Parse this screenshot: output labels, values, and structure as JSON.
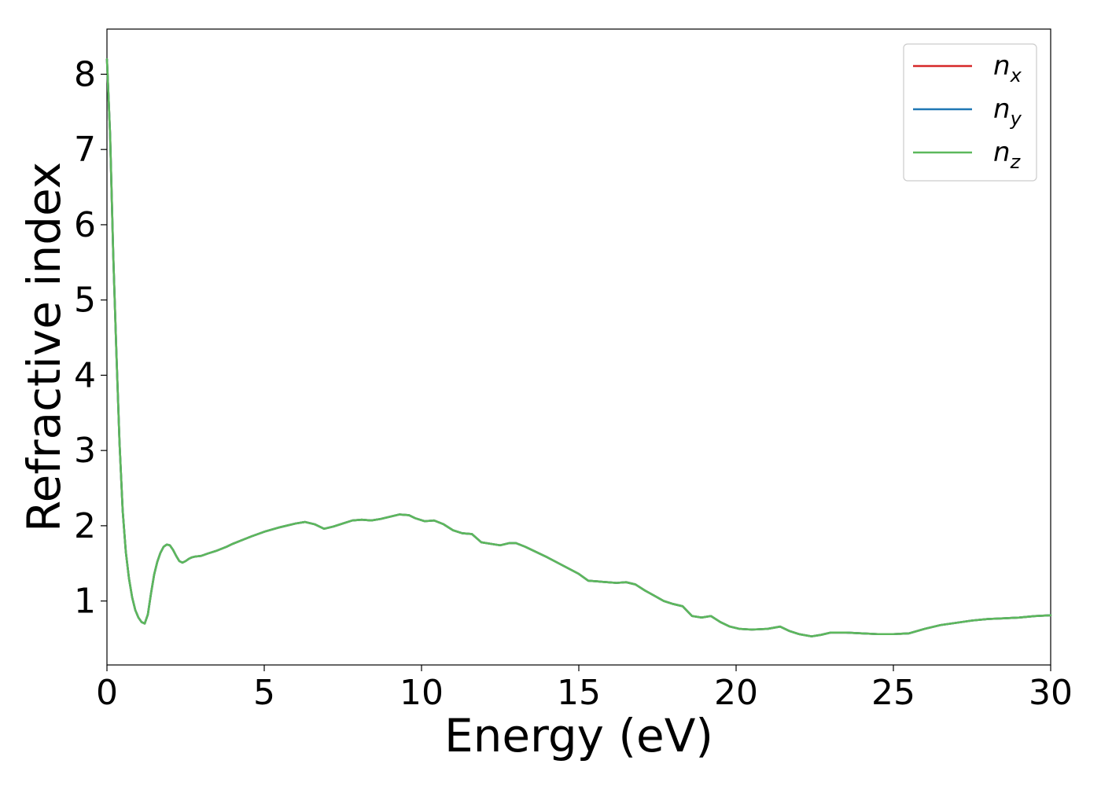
{
  "chart_data": {
    "type": "line",
    "xlabel": "Energy (eV)",
    "ylabel": "Refractive index",
    "xlim": [
      0,
      30
    ],
    "ylim": [
      0.15,
      8.6
    ],
    "xticks": [
      0,
      5,
      10,
      15,
      20,
      25,
      30
    ],
    "yticks": [
      1,
      2,
      3,
      4,
      5,
      6,
      7,
      8
    ],
    "grid": false,
    "legend_position": "top-right",
    "x": [
      0.0,
      0.1,
      0.2,
      0.3,
      0.4,
      0.5,
      0.6,
      0.7,
      0.8,
      0.9,
      1.0,
      1.1,
      1.2,
      1.3,
      1.4,
      1.5,
      1.6,
      1.7,
      1.8,
      1.9,
      2.0,
      2.1,
      2.2,
      2.3,
      2.4,
      2.5,
      2.6,
      2.7,
      2.8,
      3.0,
      3.2,
      3.5,
      3.8,
      4.0,
      4.3,
      4.6,
      5.0,
      5.5,
      6.0,
      6.3,
      6.6,
      6.9,
      7.2,
      7.5,
      7.8,
      8.1,
      8.4,
      8.7,
      9.0,
      9.3,
      9.6,
      9.8,
      10.1,
      10.4,
      10.7,
      11.0,
      11.3,
      11.6,
      11.9,
      12.2,
      12.5,
      12.8,
      13.0,
      13.3,
      13.6,
      14.0,
      14.5,
      15.0,
      15.3,
      15.6,
      15.9,
      16.2,
      16.5,
      16.8,
      17.1,
      17.4,
      17.7,
      18.0,
      18.3,
      18.6,
      18.9,
      19.2,
      19.5,
      19.8,
      20.1,
      20.5,
      21.0,
      21.4,
      21.7,
      22.0,
      22.4,
      22.7,
      23.0,
      23.5,
      24.0,
      24.5,
      25.0,
      25.5,
      26.0,
      26.5,
      27.0,
      27.5,
      28.0,
      28.5,
      29.0,
      29.5,
      30.0
    ],
    "series": [
      {
        "name": "n_x",
        "color": "#d62728",
        "y": [
          8.2,
          7.2,
          5.6,
          4.3,
          3.1,
          2.2,
          1.65,
          1.3,
          1.05,
          0.88,
          0.78,
          0.72,
          0.7,
          0.82,
          1.1,
          1.35,
          1.52,
          1.64,
          1.72,
          1.75,
          1.74,
          1.68,
          1.6,
          1.53,
          1.51,
          1.53,
          1.56,
          1.58,
          1.59,
          1.6,
          1.63,
          1.67,
          1.72,
          1.76,
          1.81,
          1.86,
          1.92,
          1.98,
          2.03,
          2.05,
          2.02,
          1.96,
          1.99,
          2.03,
          2.07,
          2.08,
          2.07,
          2.09,
          2.12,
          2.15,
          2.14,
          2.1,
          2.06,
          2.07,
          2.02,
          1.94,
          1.9,
          1.89,
          1.78,
          1.76,
          1.74,
          1.77,
          1.77,
          1.72,
          1.66,
          1.58,
          1.47,
          1.36,
          1.27,
          1.26,
          1.25,
          1.24,
          1.25,
          1.22,
          1.14,
          1.07,
          1.0,
          0.96,
          0.93,
          0.8,
          0.78,
          0.8,
          0.72,
          0.66,
          0.63,
          0.62,
          0.63,
          0.66,
          0.6,
          0.56,
          0.53,
          0.55,
          0.58,
          0.58,
          0.57,
          0.56,
          0.56,
          0.57,
          0.63,
          0.68,
          0.71,
          0.74,
          0.76,
          0.77,
          0.78,
          0.8,
          0.81
        ]
      },
      {
        "name": "n_y",
        "color": "#1f77b4",
        "y": [
          8.2,
          7.2,
          5.6,
          4.3,
          3.1,
          2.2,
          1.65,
          1.3,
          1.05,
          0.88,
          0.78,
          0.72,
          0.7,
          0.82,
          1.1,
          1.35,
          1.52,
          1.64,
          1.72,
          1.75,
          1.74,
          1.68,
          1.6,
          1.53,
          1.51,
          1.53,
          1.56,
          1.58,
          1.59,
          1.6,
          1.63,
          1.67,
          1.72,
          1.76,
          1.81,
          1.86,
          1.92,
          1.98,
          2.03,
          2.05,
          2.02,
          1.96,
          1.99,
          2.03,
          2.07,
          2.08,
          2.07,
          2.09,
          2.12,
          2.15,
          2.14,
          2.1,
          2.06,
          2.07,
          2.02,
          1.94,
          1.9,
          1.89,
          1.78,
          1.76,
          1.74,
          1.77,
          1.77,
          1.72,
          1.66,
          1.58,
          1.47,
          1.36,
          1.27,
          1.26,
          1.25,
          1.24,
          1.25,
          1.22,
          1.14,
          1.07,
          1.0,
          0.96,
          0.93,
          0.8,
          0.78,
          0.8,
          0.72,
          0.66,
          0.63,
          0.62,
          0.63,
          0.66,
          0.6,
          0.56,
          0.53,
          0.55,
          0.58,
          0.58,
          0.57,
          0.56,
          0.56,
          0.57,
          0.63,
          0.68,
          0.71,
          0.74,
          0.76,
          0.77,
          0.78,
          0.8,
          0.81
        ]
      },
      {
        "name": "n_z",
        "color": "#5cb85c",
        "y": [
          8.2,
          7.2,
          5.6,
          4.3,
          3.1,
          2.2,
          1.65,
          1.3,
          1.05,
          0.88,
          0.78,
          0.72,
          0.7,
          0.82,
          1.1,
          1.35,
          1.52,
          1.64,
          1.72,
          1.75,
          1.74,
          1.68,
          1.6,
          1.53,
          1.51,
          1.53,
          1.56,
          1.58,
          1.59,
          1.6,
          1.63,
          1.67,
          1.72,
          1.76,
          1.81,
          1.86,
          1.92,
          1.98,
          2.03,
          2.05,
          2.02,
          1.96,
          1.99,
          2.03,
          2.07,
          2.08,
          2.07,
          2.09,
          2.12,
          2.15,
          2.14,
          2.1,
          2.06,
          2.07,
          2.02,
          1.94,
          1.9,
          1.89,
          1.78,
          1.76,
          1.74,
          1.77,
          1.77,
          1.72,
          1.66,
          1.58,
          1.47,
          1.36,
          1.27,
          1.26,
          1.25,
          1.24,
          1.25,
          1.22,
          1.14,
          1.07,
          1.0,
          0.96,
          0.93,
          0.8,
          0.78,
          0.8,
          0.72,
          0.66,
          0.63,
          0.62,
          0.63,
          0.66,
          0.6,
          0.56,
          0.53,
          0.55,
          0.58,
          0.58,
          0.57,
          0.56,
          0.56,
          0.57,
          0.63,
          0.68,
          0.71,
          0.74,
          0.76,
          0.77,
          0.78,
          0.8,
          0.81
        ]
      }
    ],
    "legend": [
      {
        "base": "n",
        "sub": "x",
        "color": "#d62728"
      },
      {
        "base": "n",
        "sub": "y",
        "color": "#1f77b4"
      },
      {
        "base": "n",
        "sub": "z",
        "color": "#5cb85c"
      }
    ]
  }
}
